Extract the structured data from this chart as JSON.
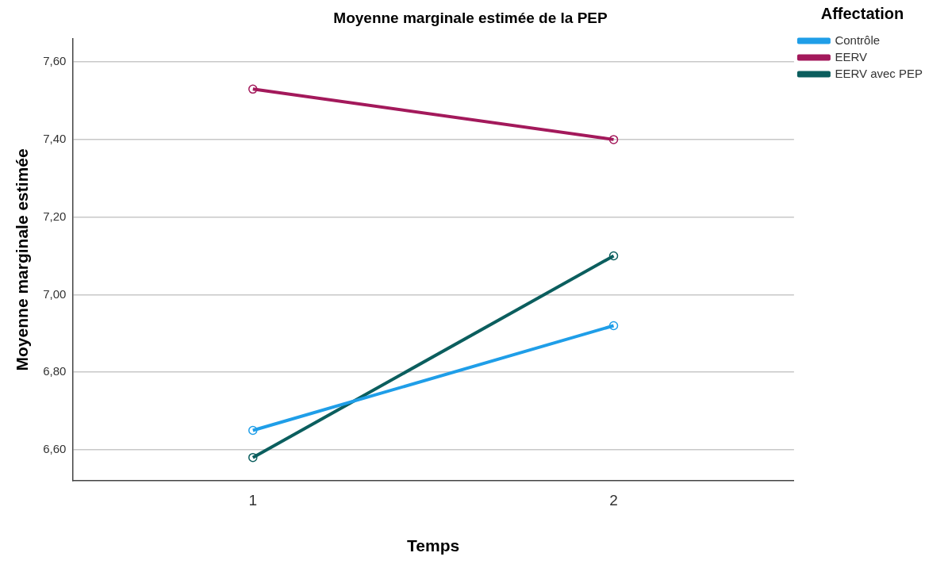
{
  "chart_data": {
    "type": "line",
    "title": "Moyenne marginale estimée de la PEP",
    "xlabel": "Temps",
    "ylabel": "Moyenne marginale estimée",
    "legend_title": "Affectation",
    "categories": [
      "1",
      "2"
    ],
    "series": [
      {
        "name": "Contrôle",
        "color": "#1f9ee8",
        "values": [
          6.65,
          6.92
        ]
      },
      {
        "name": "EERV",
        "color": "#a3195b",
        "values": [
          7.53,
          7.4
        ]
      },
      {
        "name": "EERV avec PEP",
        "color": "#0b5e5e",
        "values": [
          6.58,
          7.1
        ]
      }
    ],
    "ylim": [
      6.52,
      7.66
    ],
    "yticks": [
      {
        "value": 6.6,
        "label": "6,60"
      },
      {
        "value": 6.8,
        "label": "6,80"
      },
      {
        "value": 7.0,
        "label": "7,00"
      },
      {
        "value": 7.2,
        "label": "7,20"
      },
      {
        "value": 7.4,
        "label": "7,40"
      },
      {
        "value": 7.6,
        "label": "7,60"
      }
    ],
    "grid": "y",
    "legend": "top right",
    "marker": "circle",
    "line_style": "solid"
  }
}
